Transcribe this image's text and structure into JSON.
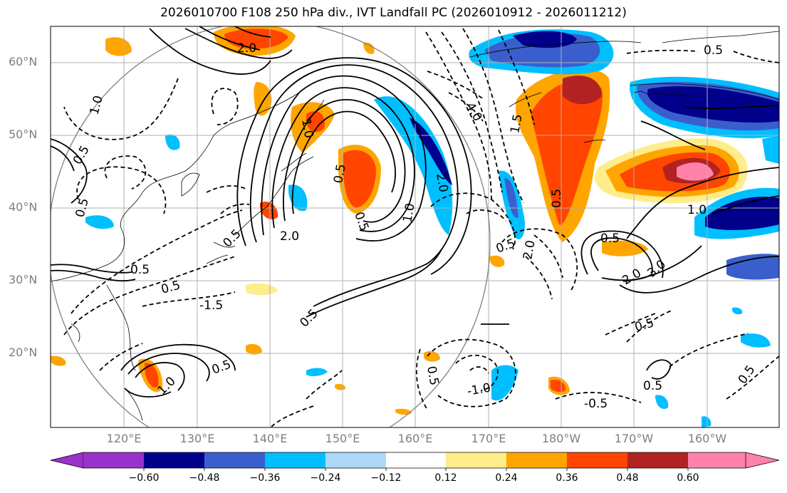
{
  "title": "2026010700 F108 250 hPa div., IVT Landfall PC (2026010912 - 2026011212)",
  "lat_labels": [
    "60°N",
    "50°N",
    "40°N",
    "30°N",
    "20°N"
  ],
  "lon_labels": [
    "120°E",
    "130°E",
    "140°E",
    "150°E",
    "160°E",
    "170°E",
    "180°W",
    "170°W",
    "160°W"
  ],
  "colorbar": {
    "ticks": [
      "−0.60",
      "−0.48",
      "−0.36",
      "−0.24",
      "−0.12",
      "0.12",
      "0.24",
      "0.36",
      "0.48",
      "0.60"
    ],
    "colors": [
      "#9932cc",
      "#00008b",
      "#3a5fcd",
      "#00bfff",
      "#add8f6",
      "#ffffff",
      "#ffec8b",
      "#ffa500",
      "#ff4500",
      "#b22222",
      "#ff82ab"
    ]
  },
  "contour_labels": [
    "2.0",
    "0.5",
    "1.0",
    "0.5",
    "0.5",
    "1.0",
    "2.0",
    "4.0",
    "1.5",
    "0.5",
    "2.0",
    "1.0",
    "0.5",
    "1.0",
    "2.0",
    "0.5",
    "-1.5",
    "0.5",
    "0.5",
    "0.5",
    "1.0",
    "0.5",
    "0.5",
    "0.5",
    "-1.0",
    "-0.5",
    "0.5",
    "0.5",
    "2.0",
    "3.0",
    "0.5",
    "0.5",
    "0.5"
  ]
}
